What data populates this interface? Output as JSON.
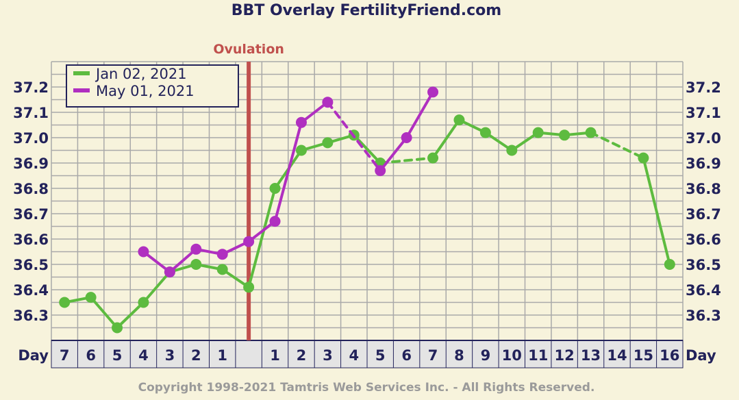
{
  "chart_data": {
    "type": "line",
    "title": "BBT Overlay FertilityFriend.com",
    "ovulation_label": "Ovulation",
    "x_axis_label": "Day",
    "copyright": "Copyright 1998-2021 Tamtris Web Services Inc. - All Rights Reserved.",
    "categories": [
      "7",
      "6",
      "5",
      "4",
      "3",
      "2",
      "1",
      "",
      "1",
      "2",
      "3",
      "4",
      "5",
      "6",
      "7",
      "8",
      "9",
      "10",
      "11",
      "12",
      "13",
      "14",
      "15",
      "16"
    ],
    "ovulation_index": 7,
    "ylim": [
      36.2,
      37.3
    ],
    "yticks": [
      "37.2",
      "37.1",
      "37.0",
      "36.9",
      "36.8",
      "36.7",
      "36.6",
      "36.5",
      "36.4",
      "36.3"
    ],
    "grid": true,
    "legend_position": "top-left",
    "series": [
      {
        "name": "Jan 02, 2021",
        "color": "#5dbb3f",
        "values": [
          36.35,
          36.37,
          36.25,
          36.35,
          36.47,
          36.5,
          36.48,
          36.41,
          36.8,
          36.95,
          36.98,
          37.01,
          36.9,
          null,
          36.92,
          37.07,
          37.02,
          36.95,
          37.02,
          37.01,
          37.02,
          null,
          36.92,
          36.5
        ],
        "dashed_segments": [
          [
            12,
            14
          ],
          [
            20,
            22
          ]
        ]
      },
      {
        "name": "May 01, 2021",
        "color": "#b02fc0",
        "values": [
          null,
          null,
          null,
          36.55,
          36.47,
          36.56,
          36.54,
          36.59,
          36.67,
          37.06,
          37.14,
          null,
          36.87,
          37.0,
          37.18,
          null,
          null,
          null,
          null,
          null,
          null,
          null,
          null,
          null
        ],
        "dashed_segments": [
          [
            10,
            12
          ]
        ]
      }
    ]
  }
}
